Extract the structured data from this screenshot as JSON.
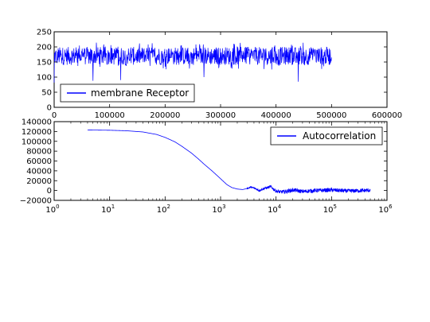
{
  "chart_data": [
    {
      "type": "line",
      "title": "",
      "xlabel": "",
      "ylabel": "",
      "xlim": [
        0,
        600000
      ],
      "ylim": [
        0,
        250
      ],
      "x_ticks": [
        0,
        100000,
        200000,
        300000,
        400000,
        500000,
        600000
      ],
      "x_tick_labels": [
        "0",
        "100000",
        "200000",
        "300000",
        "400000",
        "500000",
        "600000"
      ],
      "y_ticks": [
        0,
        50,
        100,
        150,
        200,
        250
      ],
      "y_tick_labels": [
        "0",
        "50",
        "100",
        "150",
        "200",
        "250"
      ],
      "grid": false,
      "legend_position": "bottom-left",
      "color": "#0000ff",
      "series": [
        {
          "name": "membrane Receptor",
          "x_range": [
            0,
            500000
          ],
          "typical_range": [
            130,
            210
          ],
          "min": 82,
          "max": 220,
          "mean": 170,
          "description_points": [
            {
              "x": 0,
              "y": 82
            },
            {
              "x": 5000,
              "y": 150
            },
            {
              "x": 70000,
              "y": 88
            },
            {
              "x": 120000,
              "y": 90
            },
            {
              "x": 270000,
              "y": 100
            },
            {
              "x": 440000,
              "y": 85
            },
            {
              "x": 500000,
              "y": 165
            }
          ]
        }
      ]
    },
    {
      "type": "line",
      "title": "",
      "xlabel": "",
      "ylabel": "",
      "xscale": "log",
      "xlim": [
        1,
        1000000
      ],
      "ylim": [
        -20000,
        140000
      ],
      "x_ticks": [
        1,
        10,
        100,
        1000,
        10000,
        100000,
        1000000
      ],
      "x_tick_labels": [
        {
          "base": "10",
          "exp": "0"
        },
        {
          "base": "10",
          "exp": "1"
        },
        {
          "base": "10",
          "exp": "2"
        },
        {
          "base": "10",
          "exp": "3"
        },
        {
          "base": "10",
          "exp": "4"
        },
        {
          "base": "10",
          "exp": "5"
        },
        {
          "base": "10",
          "exp": "6"
        }
      ],
      "y_ticks": [
        -20000,
        0,
        20000,
        40000,
        60000,
        80000,
        100000,
        120000,
        140000
      ],
      "y_tick_labels": [
        "−20000",
        "0",
        "20000",
        "40000",
        "60000",
        "80000",
        "100000",
        "120000",
        "140000"
      ],
      "grid": false,
      "legend_position": "top-right",
      "color": "#0000ff",
      "series": [
        {
          "name": "Autocorrelation",
          "x": [
            4,
            10,
            20,
            40,
            70,
            100,
            150,
            200,
            300,
            400,
            500,
            700,
            1000,
            1300,
            1600,
            2000,
            2500,
            3000,
            3500,
            4000,
            5000,
            6000,
            7000,
            8000,
            9000,
            10000,
            12000,
            15000,
            20000,
            30000,
            50000,
            100000,
            200000,
            500000
          ],
          "y": [
            123000,
            122500,
            121500,
            119000,
            114000,
            108000,
            99000,
            90000,
            76000,
            64000,
            54000,
            40000,
            24000,
            12000,
            6000,
            3000,
            2000,
            4000,
            7000,
            5000,
            0,
            4000,
            6000,
            8000,
            3000,
            -1000,
            -3000,
            -2000,
            1000,
            -2000,
            0,
            1000,
            -1000,
            500
          ],
          "noise_region": {
            "start_x": 3000,
            "amplitude": 4000
          }
        }
      ]
    }
  ]
}
